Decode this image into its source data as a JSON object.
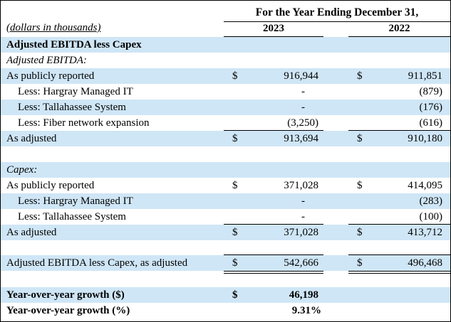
{
  "header": {
    "period_title": "For the Year Ending December 31,",
    "units_note": "(dollars in thousands)",
    "year_1": "2023",
    "year_2": "2022"
  },
  "section_title": "Adjusted EBITDA less Capex",
  "ebitda": {
    "heading": "Adjusted EBITDA:",
    "rows": [
      {
        "label": "As publicly reported",
        "d1": "$",
        "v1": "916,944",
        "d2": "$",
        "v2": "911,851"
      },
      {
        "label": "Less: Hargray Managed IT",
        "v1": "-",
        "v2": "(879)"
      },
      {
        "label": "Less: Tallahassee System",
        "v1": "-",
        "v2": "(176)"
      },
      {
        "label": "Less: Fiber network expansion",
        "v1": "(3,250)",
        "v2": "(616)"
      },
      {
        "label": "As adjusted",
        "d1": "$",
        "v1": "913,694",
        "d2": "$",
        "v2": "910,180"
      }
    ]
  },
  "capex": {
    "heading": "Capex:",
    "rows": [
      {
        "label": "As publicly reported",
        "d1": "$",
        "v1": "371,028",
        "d2": "$",
        "v2": "414,095"
      },
      {
        "label": "Less: Hargray Managed IT",
        "v1": "-",
        "v2": "(283)"
      },
      {
        "label": "Less: Tallahassee System",
        "v1": "-",
        "v2": "(100)"
      },
      {
        "label": "As adjusted",
        "d1": "$",
        "v1": "371,028",
        "d2": "$",
        "v2": "413,712"
      }
    ]
  },
  "total": {
    "label": "Adjusted EBITDA less Capex, as adjusted",
    "d1": "$",
    "v1": "542,666",
    "d2": "$",
    "v2": "496,468"
  },
  "growth": [
    {
      "label": "Year-over-year growth ($)",
      "d1": "$",
      "v1": "46,198"
    },
    {
      "label": "Year-over-year growth (%)",
      "v1": "9.31%"
    }
  ]
}
